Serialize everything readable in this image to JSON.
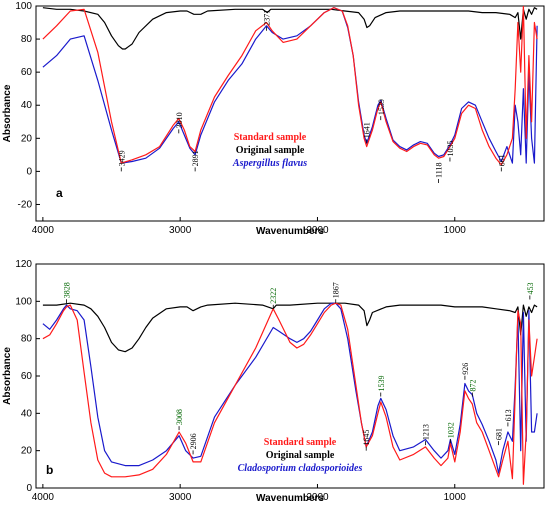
{
  "chart_data": [
    {
      "type": "line",
      "panel_label": "a",
      "xlabel": "Wavenumbers",
      "ylabel": "Absorbance",
      "xlim": [
        4050,
        350
      ],
      "ylim": [
        -30,
        100
      ],
      "xticks": [
        4000,
        3000,
        2000,
        1000
      ],
      "yticks": [
        -20,
        0,
        20,
        40,
        60,
        80,
        100
      ],
      "legend": {
        "placement": "center",
        "entries": [
          {
            "label": "Standard sample",
            "color": "#ff1a1a",
            "italic": false
          },
          {
            "label": "Original sample",
            "color": "#000000",
            "italic": false
          },
          {
            "label": "Aspergillus flavus",
            "color": "#1a1acc",
            "italic": true
          }
        ]
      },
      "annotations": [
        {
          "text": "3429",
          "x": 3429,
          "y": 0,
          "color": "#000000"
        },
        {
          "text": "3010",
          "x": 3010,
          "y": 23,
          "color": "#000000"
        },
        {
          "text": "2891",
          "x": 2891,
          "y": 0,
          "color": "#000000"
        },
        {
          "text": "2371",
          "x": 2371,
          "y": 85,
          "color": "#000000"
        },
        {
          "text": "1641",
          "x": 1641,
          "y": 17,
          "color": "#000000"
        },
        {
          "text": "1539",
          "x": 1539,
          "y": 31,
          "color": "#000000"
        },
        {
          "text": "1118",
          "x": 1118,
          "y": -7,
          "color": "#000000"
        },
        {
          "text": "1035",
          "x": 1035,
          "y": 6,
          "color": "#000000"
        },
        {
          "text": "661",
          "x": 661,
          "y": 0,
          "color": "#000000"
        }
      ],
      "series": [
        {
          "name": "Standard sample",
          "color": "#ff1a1a",
          "x": [
            4000,
            3900,
            3800,
            3700,
            3600,
            3500,
            3429,
            3350,
            3250,
            3150,
            3050,
            3010,
            2970,
            2930,
            2891,
            2850,
            2750,
            2650,
            2550,
            2450,
            2371,
            2330,
            2250,
            2150,
            2050,
            1950,
            1880,
            1820,
            1780,
            1740,
            1700,
            1660,
            1641,
            1600,
            1560,
            1539,
            1500,
            1450,
            1400,
            1350,
            1300,
            1250,
            1200,
            1150,
            1118,
            1080,
            1035,
            1000,
            950,
            900,
            850,
            800,
            750,
            700,
            661,
            620,
            580,
            560,
            540,
            520,
            500,
            480,
            460,
            440,
            420,
            400
          ],
          "y": [
            80,
            88,
            97,
            98,
            72,
            30,
            5,
            7,
            10,
            15,
            28,
            32,
            25,
            15,
            12,
            25,
            45,
            58,
            70,
            85,
            90,
            85,
            78,
            80,
            88,
            96,
            99,
            97,
            88,
            70,
            40,
            20,
            15,
            25,
            38,
            42,
            30,
            18,
            14,
            12,
            15,
            17,
            16,
            10,
            8,
            9,
            15,
            20,
            35,
            40,
            38,
            25,
            15,
            8,
            4,
            10,
            20,
            50,
            90,
            60,
            100,
            20,
            70,
            30,
            90,
            80
          ]
        },
        {
          "name": "Original sample",
          "color": "#000000",
          "x": [
            4000,
            3900,
            3800,
            3700,
            3600,
            3550,
            3500,
            3450,
            3420,
            3400,
            3350,
            3300,
            3200,
            3100,
            3000,
            2950,
            2900,
            2850,
            2800,
            2600,
            2400,
            2365,
            2340,
            2300,
            2200,
            2100,
            2000,
            1900,
            1800,
            1700,
            1660,
            1640,
            1620,
            1580,
            1500,
            1400,
            1300,
            1200,
            1100,
            1000,
            900,
            800,
            700,
            600,
            560,
            540,
            520,
            500,
            480,
            460,
            440,
            420,
            400
          ],
          "y": [
            99,
            98,
            98,
            97,
            95,
            90,
            82,
            76,
            74,
            74,
            77,
            84,
            92,
            96,
            97,
            97,
            95,
            95,
            97,
            98,
            98,
            96,
            98,
            98,
            98,
            98,
            98,
            98,
            97,
            96,
            92,
            87,
            88,
            93,
            96,
            97,
            97,
            97,
            97,
            97,
            97,
            96,
            96,
            95,
            93,
            96,
            80,
            98,
            92,
            98,
            95,
            99,
            98
          ]
        },
        {
          "name": "Aspergillus flavus",
          "color": "#1a1acc",
          "x": [
            4000,
            3900,
            3800,
            3700,
            3600,
            3500,
            3429,
            3350,
            3250,
            3150,
            3050,
            3010,
            2970,
            2930,
            2891,
            2850,
            2750,
            2650,
            2550,
            2450,
            2371,
            2330,
            2250,
            2150,
            2050,
            1950,
            1880,
            1820,
            1780,
            1740,
            1700,
            1660,
            1641,
            1600,
            1560,
            1539,
            1500,
            1450,
            1400,
            1350,
            1300,
            1250,
            1200,
            1150,
            1118,
            1080,
            1035,
            1000,
            950,
            900,
            850,
            800,
            750,
            700,
            661,
            620,
            580,
            560,
            540,
            520,
            500,
            480,
            460,
            440,
            420,
            400
          ],
          "y": [
            63,
            70,
            80,
            82,
            55,
            25,
            5,
            6,
            8,
            14,
            26,
            30,
            22,
            14,
            10,
            22,
            42,
            55,
            65,
            80,
            88,
            84,
            80,
            82,
            88,
            96,
            99,
            97,
            87,
            70,
            42,
            22,
            17,
            27,
            40,
            43,
            32,
            19,
            15,
            13,
            16,
            18,
            17,
            11,
            9,
            10,
            16,
            22,
            38,
            42,
            40,
            30,
            20,
            12,
            6,
            15,
            5,
            40,
            30,
            10,
            50,
            5,
            60,
            20,
            5,
            88
          ]
        }
      ]
    },
    {
      "type": "line",
      "panel_label": "b",
      "xlabel": "Wavenumbers",
      "ylabel": "Absorbance",
      "xlim": [
        4050,
        350
      ],
      "ylim": [
        0,
        120
      ],
      "xticks": [
        4000,
        3000,
        2000,
        1000
      ],
      "yticks": [
        0,
        20,
        40,
        60,
        80,
        100,
        120
      ],
      "legend": {
        "placement": "center",
        "entries": [
          {
            "label": "Standard sample",
            "color": "#ff1a1a",
            "italic": false
          },
          {
            "label": "Original sample",
            "color": "#000000",
            "italic": false
          },
          {
            "label": "Cladosporium cladosporioides",
            "color": "#1a1acc",
            "italic": true
          }
        ]
      },
      "annotations": [
        {
          "text": "3828",
          "x": 3828,
          "y": 99,
          "color": "#006600"
        },
        {
          "text": "3008",
          "x": 3008,
          "y": 31,
          "color": "#006600"
        },
        {
          "text": "2906",
          "x": 2906,
          "y": 18,
          "color": "#000000"
        },
        {
          "text": "2322",
          "x": 2322,
          "y": 96,
          "color": "#006600"
        },
        {
          "text": "1867",
          "x": 1867,
          "y": 99,
          "color": "#000000"
        },
        {
          "text": "1645",
          "x": 1645,
          "y": 20,
          "color": "#000000"
        },
        {
          "text": "1539",
          "x": 1539,
          "y": 49,
          "color": "#006600"
        },
        {
          "text": "1213",
          "x": 1213,
          "y": 23,
          "color": "#000000"
        },
        {
          "text": "1032",
          "x": 1032,
          "y": 24,
          "color": "#006600"
        },
        {
          "text": "926",
          "x": 926,
          "y": 58,
          "color": "#000000"
        },
        {
          "text": "872",
          "x": 872,
          "y": 49,
          "color": "#006600"
        },
        {
          "text": "681",
          "x": 681,
          "y": 23,
          "color": "#000000"
        },
        {
          "text": "613",
          "x": 613,
          "y": 33,
          "color": "#000000"
        },
        {
          "text": "453",
          "x": 453,
          "y": 101,
          "color": "#006600"
        }
      ],
      "series": [
        {
          "name": "Standard sample",
          "color": "#ff1a1a",
          "x": [
            4000,
            3950,
            3900,
            3850,
            3828,
            3800,
            3750,
            3700,
            3650,
            3600,
            3550,
            3500,
            3400,
            3300,
            3200,
            3100,
            3008,
            2960,
            2906,
            2850,
            2750,
            2600,
            2450,
            2322,
            2280,
            2200,
            2150,
            2100,
            2050,
            2000,
            1950,
            1900,
            1867,
            1830,
            1780,
            1720,
            1680,
            1645,
            1600,
            1560,
            1539,
            1500,
            1450,
            1400,
            1300,
            1213,
            1150,
            1100,
            1050,
            1032,
            1000,
            960,
            926,
            900,
            872,
            840,
            800,
            750,
            700,
            681,
            650,
            613,
            580,
            560,
            540,
            520,
            500,
            480,
            460,
            440,
            420,
            400
          ],
          "y": [
            80,
            82,
            88,
            95,
            97,
            98,
            90,
            62,
            35,
            15,
            8,
            6,
            6,
            7,
            10,
            18,
            30,
            24,
            14,
            14,
            35,
            55,
            75,
            96,
            90,
            78,
            75,
            77,
            82,
            88,
            94,
            98,
            99,
            98,
            85,
            55,
            35,
            22,
            28,
            40,
            46,
            38,
            22,
            15,
            18,
            22,
            16,
            12,
            16,
            24,
            14,
            30,
            52,
            48,
            45,
            35,
            30,
            20,
            10,
            6,
            15,
            25,
            5,
            50,
            95,
            88,
            2,
            30,
            90,
            60,
            70,
            80
          ]
        },
        {
          "name": "Original sample",
          "color": "#000000",
          "x": [
            4000,
            3900,
            3800,
            3700,
            3650,
            3600,
            3550,
            3500,
            3450,
            3400,
            3350,
            3300,
            3250,
            3200,
            3100,
            3000,
            2950,
            2906,
            2850,
            2800,
            2600,
            2400,
            2322,
            2300,
            2200,
            2000,
            1900,
            1800,
            1700,
            1660,
            1640,
            1620,
            1600,
            1500,
            1400,
            1300,
            1200,
            1100,
            1000,
            900,
            800,
            700,
            600,
            560,
            540,
            520,
            500,
            480,
            460,
            440,
            420,
            400
          ],
          "y": [
            98,
            98,
            99,
            98,
            96,
            92,
            86,
            78,
            74,
            73,
            75,
            80,
            86,
            91,
            96,
            97,
            97,
            95,
            97,
            98,
            99,
            98,
            96,
            98,
            98,
            99,
            99,
            99,
            98,
            95,
            87,
            90,
            94,
            97,
            98,
            98,
            98,
            98,
            97,
            97,
            97,
            96,
            95,
            94,
            97,
            82,
            98,
            92,
            97,
            94,
            98,
            97
          ]
        },
        {
          "name": "Cladosporium cladosporioides",
          "color": "#1a1acc",
          "x": [
            4000,
            3950,
            3900,
            3850,
            3828,
            3800,
            3750,
            3700,
            3650,
            3600,
            3550,
            3500,
            3400,
            3300,
            3200,
            3100,
            3008,
            2960,
            2906,
            2850,
            2750,
            2600,
            2450,
            2322,
            2280,
            2200,
            2150,
            2100,
            2050,
            2000,
            1950,
            1900,
            1867,
            1830,
            1780,
            1720,
            1680,
            1645,
            1600,
            1560,
            1539,
            1500,
            1450,
            1400,
            1300,
            1213,
            1150,
            1100,
            1050,
            1032,
            1000,
            960,
            926,
            900,
            872,
            840,
            800,
            750,
            700,
            681,
            650,
            613,
            580,
            560,
            540,
            520,
            500,
            480,
            460,
            440,
            420,
            400
          ],
          "y": [
            88,
            85,
            90,
            96,
            98,
            96,
            95,
            90,
            65,
            38,
            20,
            14,
            12,
            12,
            15,
            20,
            28,
            20,
            16,
            17,
            38,
            55,
            70,
            86,
            84,
            80,
            78,
            80,
            84,
            90,
            96,
            99,
            99,
            96,
            80,
            52,
            35,
            22,
            30,
            44,
            48,
            42,
            28,
            20,
            22,
            26,
            20,
            16,
            20,
            26,
            18,
            34,
            56,
            52,
            50,
            40,
            34,
            25,
            15,
            8,
            20,
            30,
            25,
            55,
            92,
            20,
            94,
            25,
            95,
            30,
            30,
            40
          ]
        }
      ]
    }
  ]
}
